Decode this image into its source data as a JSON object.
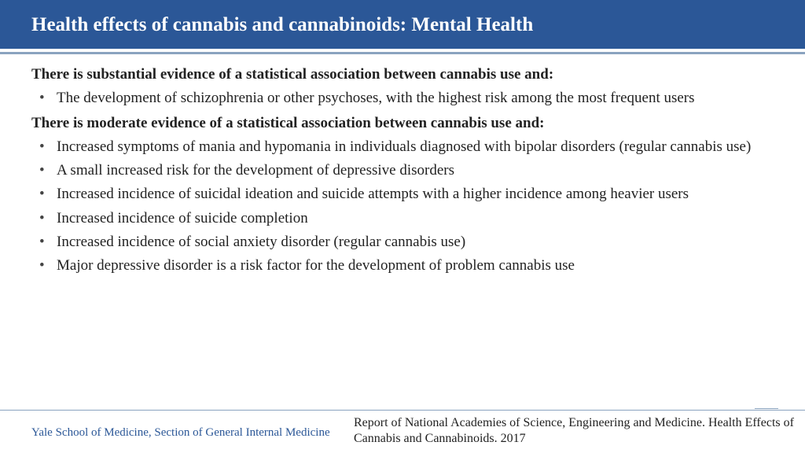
{
  "colors": {
    "header_bg": "#2b5797",
    "header_text": "#ffffff",
    "divider": "#8aa3bf",
    "body_text": "#222222",
    "footer_left": "#2b5797",
    "page_bg": "#ffffff"
  },
  "typography": {
    "title_fontsize": 25,
    "lead_fontsize": 19,
    "bullet_fontsize": 19,
    "footer_left_fontsize": 15,
    "footer_right_fontsize": 16,
    "font_family": "Georgia, serif"
  },
  "header": {
    "title": "Health effects of cannabis and cannabinoids: Mental Health"
  },
  "sections": [
    {
      "lead": "There is substantial evidence of a statistical association between cannabis use and:",
      "bullets": [
        "The development of schizophrenia or other psychoses, with the highest risk among the most frequent users"
      ]
    },
    {
      "lead": "There is moderate evidence of a statistical association between cannabis use and:",
      "bullets": [
        "Increased symptoms of mania and hypomania in individuals diagnosed with bipolar disorders (regular cannabis use)",
        "A small increased risk for the development of depressive disorders",
        "Increased incidence of suicidal ideation and suicide attempts with a higher incidence among heavier users",
        "Increased incidence of suicide completion",
        "Increased incidence of social anxiety disorder (regular cannabis use)",
        "Major depressive disorder is a risk factor for the development of problem cannabis use"
      ]
    }
  ],
  "footer": {
    "left": "Yale School of Medicine, Section of General Internal Medicine",
    "right": "Report of National Academies of Science, Engineering and Medicine. Health Effects of Cannabis and Cannabinoids. 2017"
  }
}
